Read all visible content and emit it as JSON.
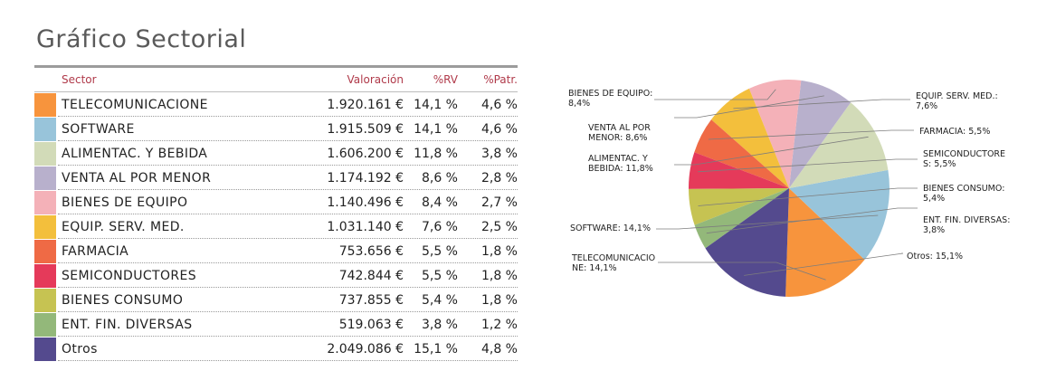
{
  "page": {
    "title": "Gráfico Sectorial"
  },
  "table": {
    "headers": {
      "sector": "Sector",
      "valoracion": "Valoración",
      "rv": "%RV",
      "patr": "%Patr."
    },
    "rows": [
      {
        "sector": "TELECOMUNICACIONE",
        "valoracion": "1.920.161 €",
        "rv": "14,1 %",
        "patr": "4,6 %",
        "color": "#f7943d"
      },
      {
        "sector": "SOFTWARE",
        "valoracion": "1.915.509 €",
        "rv": "14,1 %",
        "patr": "4,6 %",
        "color": "#98c4da"
      },
      {
        "sector": "ALIMENTAC. Y BEBIDA",
        "valoracion": "1.606.200 €",
        "rv": "11,8 %",
        "patr": "3,8 %",
        "color": "#d2dbb8"
      },
      {
        "sector": "VENTA AL POR MENOR",
        "valoracion": "1.174.192 €",
        "rv": "8,6 %",
        "patr": "2,8 %",
        "color": "#b8b0cc"
      },
      {
        "sector": "BIENES DE EQUIPO",
        "valoracion": "1.140.496 €",
        "rv": "8,4 %",
        "patr": "2,7 %",
        "color": "#f4b1b8"
      },
      {
        "sector": "EQUIP. SERV. MED.",
        "valoracion": "1.031.140 €",
        "rv": "7,6 %",
        "patr": "2,5 %",
        "color": "#f3bf3c"
      },
      {
        "sector": "FARMACIA",
        "valoracion": "753.656 €",
        "rv": "5,5 %",
        "patr": "1,8 %",
        "color": "#ef6a45"
      },
      {
        "sector": "SEMICONDUCTORES",
        "valoracion": "742.844 €",
        "rv": "5,5 %",
        "patr": "1,8 %",
        "color": "#e53a5a"
      },
      {
        "sector": "BIENES CONSUMO",
        "valoracion": "737.855 €",
        "rv": "5,4 %",
        "patr": "1,8 %",
        "color": "#c6c352"
      },
      {
        "sector": "ENT. FIN. DIVERSAS",
        "valoracion": "519.063 €",
        "rv": "3,8 %",
        "patr": "1,2 %",
        "color": "#93b87a"
      },
      {
        "sector": "Otros",
        "valoracion": "2.049.086 €",
        "rv": "15,1 %",
        "patr": "4,8 %",
        "color": "#544a8e"
      }
    ]
  },
  "chart_data": {
    "type": "pie",
    "categories": [
      "TELECOMUNICACIONE",
      "SOFTWARE",
      "ALIMENTAC. Y BEBIDA",
      "VENTA AL POR MENOR",
      "BIENES DE EQUIPO",
      "EQUIP. SERV. MED.",
      "FARMACIA",
      "SEMICONDUCTORES",
      "BIENES CONSUMO",
      "ENT. FIN. DIVERSAS",
      "Otros"
    ],
    "values": [
      14.1,
      14.1,
      11.8,
      8.6,
      8.4,
      7.6,
      5.5,
      5.5,
      5.4,
      3.8,
      15.1
    ],
    "colors": [
      "#f7943d",
      "#98c4da",
      "#d2dbb8",
      "#b8b0cc",
      "#f4b1b8",
      "#f3bf3c",
      "#ef6a45",
      "#e53a5a",
      "#c6c352",
      "#93b87a",
      "#544a8e"
    ],
    "labels": [
      [
        "TELECOMUNICACIO",
        "NE: 14,1%"
      ],
      [
        "SOFTWARE: 14,1%"
      ],
      [
        "ALIMENTAC. Y",
        "BEBIDA: 11,8%"
      ],
      [
        "VENTA AL POR",
        "MENOR: 8,6%"
      ],
      [
        "BIENES DE EQUIPO:",
        "8,4%"
      ],
      [
        "EQUIP. SERV. MED.:",
        "7,6%"
      ],
      [
        "FARMACIA: 5,5%"
      ],
      [
        "SEMICONDUCTORE",
        "S: 5,5%"
      ],
      [
        "BIENES CONSUMO:",
        "5,4%"
      ],
      [
        "ENT. FIN. DIVERSAS:",
        "3,8%"
      ],
      [
        "Otros: 15,1%"
      ]
    ]
  }
}
